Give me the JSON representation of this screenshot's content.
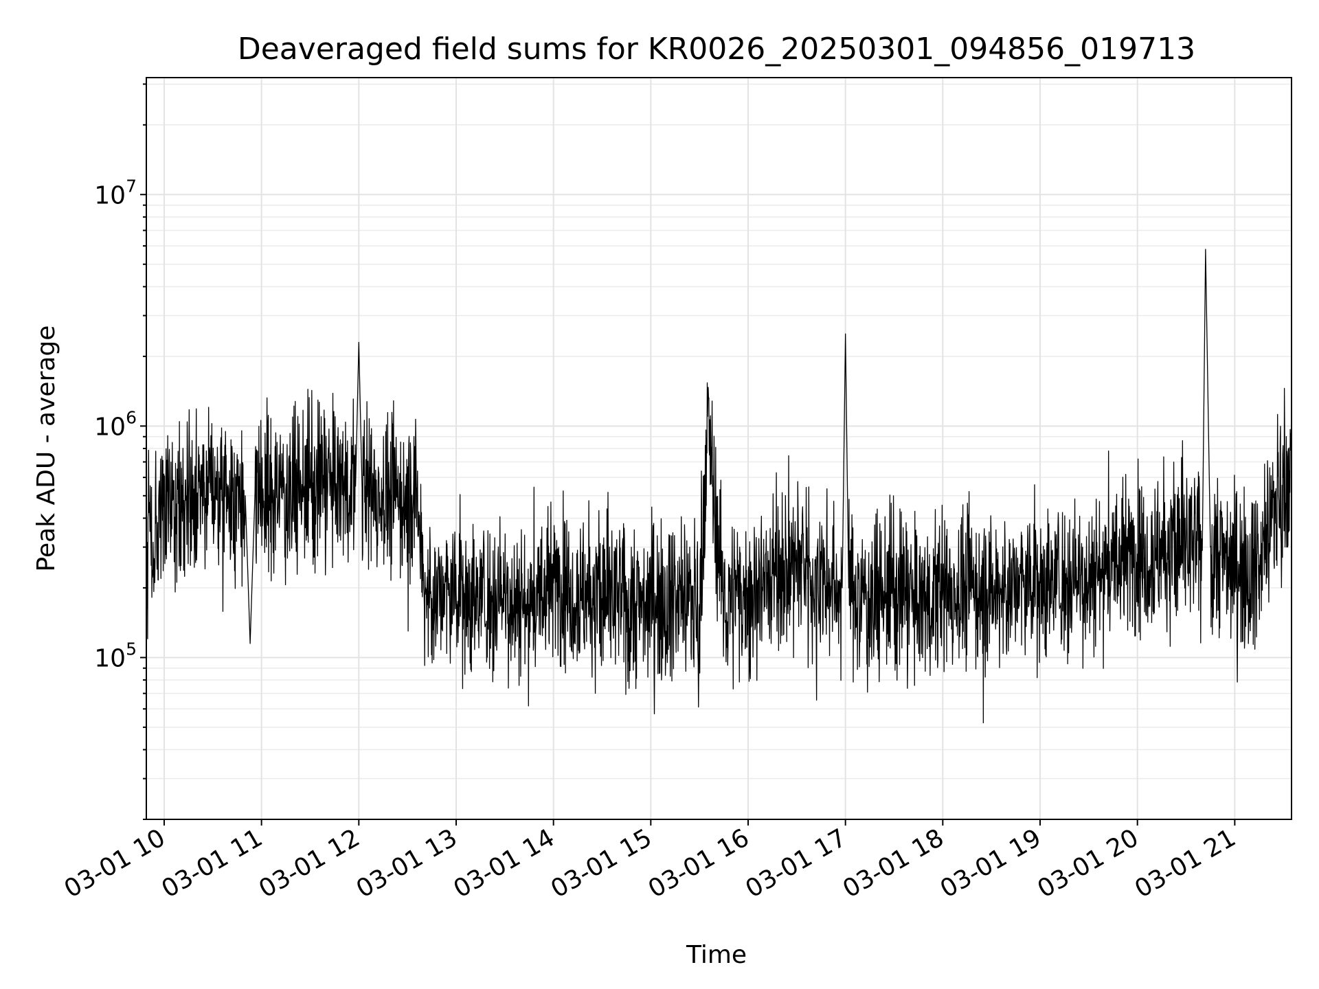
{
  "chart_data": {
    "type": "line",
    "title": "Deaveraged field sums for KR0026_20250301_094856_019713",
    "xlabel": "Time",
    "ylabel": "Peak ADU - average",
    "yscale": "log",
    "xlim": [
      "2025-03-01T09:49:00",
      "2025-03-01T21:35:00"
    ],
    "ylim": [
      20000,
      32000000
    ],
    "grid": true,
    "x_tick_labels": [
      "03-01 10",
      "03-01 11",
      "03-01 12",
      "03-01 13",
      "03-01 14",
      "03-01 15",
      "03-01 16",
      "03-01 17",
      "03-01 18",
      "03-01 19",
      "03-01 20",
      "03-01 21"
    ],
    "x_ticks": [
      "2025-03-01T10:00:00",
      "2025-03-01T11:00:00",
      "2025-03-01T12:00:00",
      "2025-03-01T13:00:00",
      "2025-03-01T14:00:00",
      "2025-03-01T15:00:00",
      "2025-03-01T16:00:00",
      "2025-03-01T17:00:00",
      "2025-03-01T18:00:00",
      "2025-03-01T19:00:00",
      "2025-03-01T20:00:00",
      "2025-03-01T21:00:00"
    ],
    "y_ticks": [
      {
        "value": 100000,
        "base": "10",
        "exp": "5"
      },
      {
        "value": 1000000,
        "base": "10",
        "exp": "6"
      },
      {
        "value": 10000000,
        "base": "10",
        "exp": "7"
      }
    ],
    "line_color": "#000000",
    "series": [
      {
        "x": [
          "2025-03-01T09:49:00",
          "2025-03-01T09:52:00",
          "2025-03-01T09:55:00",
          "2025-03-01T10:00:00",
          "2025-03-01T10:15:00",
          "2025-03-01T10:30:00",
          "2025-03-01T10:50:00",
          "2025-03-01T10:53:00",
          "2025-03-01T10:56:00",
          "2025-03-01T11:15:00",
          "2025-03-01T11:30:00",
          "2025-03-01T11:45:00",
          "2025-03-01T11:58:00",
          "2025-03-01T12:00:00",
          "2025-03-01T12:02:00",
          "2025-03-01T12:15:00",
          "2025-03-01T12:30:00",
          "2025-03-01T12:36:00",
          "2025-03-01T12:40:00",
          "2025-03-01T12:45:00",
          "2025-03-01T13:00:00",
          "2025-03-01T13:15:00",
          "2025-03-01T13:30:00",
          "2025-03-01T13:45:00",
          "2025-03-01T14:00:00",
          "2025-03-01T14:10:00",
          "2025-03-01T14:30:00",
          "2025-03-01T14:56:00",
          "2025-03-01T15:00:00",
          "2025-03-01T15:20:00",
          "2025-03-01T15:30:00",
          "2025-03-01T15:35:00",
          "2025-03-01T15:45:00",
          "2025-03-01T16:00:00",
          "2025-03-01T16:15:00",
          "2025-03-01T16:30:00",
          "2025-03-01T16:50:00",
          "2025-03-01T16:58:00",
          "2025-03-01T17:00:00",
          "2025-03-01T17:02:00",
          "2025-03-01T17:15:00",
          "2025-03-01T17:30:00",
          "2025-03-01T17:45:00",
          "2025-03-01T18:00:00",
          "2025-03-01T18:15:00",
          "2025-03-01T18:30:00",
          "2025-03-01T18:45:00",
          "2025-03-01T19:00:00",
          "2025-03-01T19:15:00",
          "2025-03-01T19:30:00",
          "2025-03-01T19:45:00",
          "2025-03-01T20:00:00",
          "2025-03-01T20:15:00",
          "2025-03-01T20:30:00",
          "2025-03-01T20:40:00",
          "2025-03-01T20:42:00",
          "2025-03-01T20:45:00",
          "2025-03-01T21:00:00",
          "2025-03-01T21:15:00",
          "2025-03-01T21:30:00",
          "2025-03-01T21:35:00"
        ],
        "y": [
          300000,
          250000,
          380000,
          450000,
          480000,
          520000,
          500000,
          115000,
          520000,
          530000,
          540000,
          560000,
          550000,
          2300000,
          540000,
          500000,
          480000,
          500000,
          200000,
          180000,
          190000,
          180000,
          190000,
          170000,
          210000,
          200000,
          180000,
          170000,
          190000,
          180000,
          170000,
          1100000,
          170000,
          190000,
          230000,
          250000,
          210000,
          200000,
          2500000,
          200000,
          180000,
          190000,
          170000,
          190000,
          200000,
          190000,
          200000,
          210000,
          220000,
          230000,
          260000,
          280000,
          290000,
          300000,
          290000,
          5800000,
          300000,
          260000,
          250000,
          600000,
          650000
        ]
      }
    ]
  }
}
